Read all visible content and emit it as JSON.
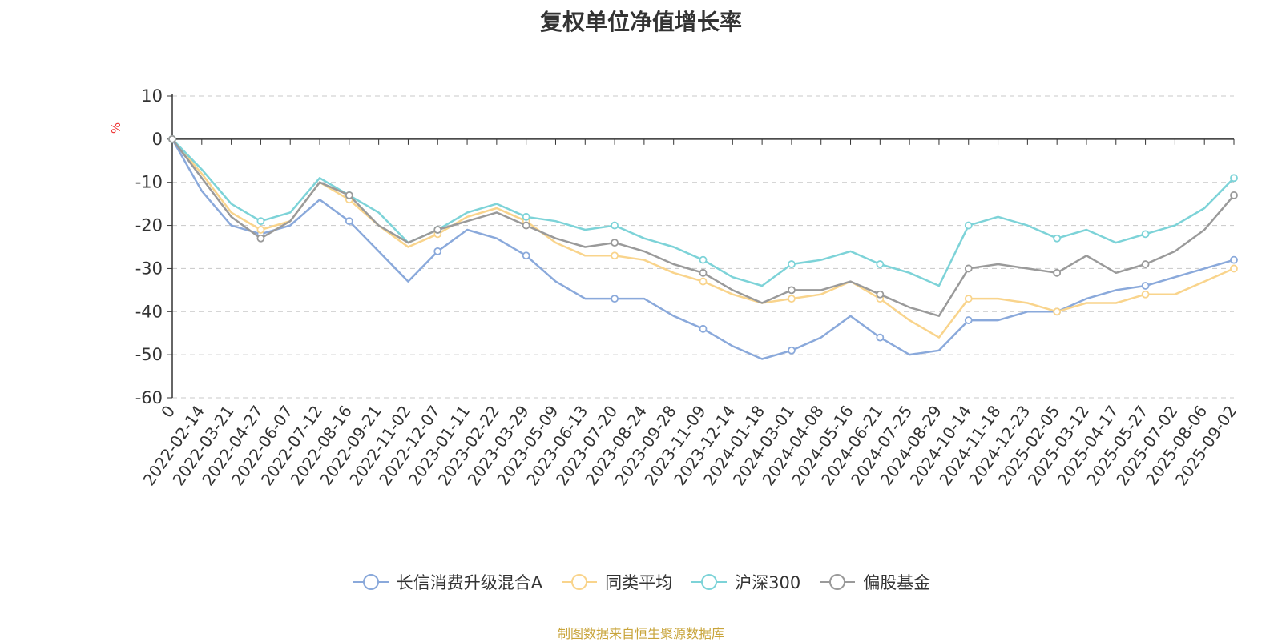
{
  "chart_data": {
    "type": "line",
    "title": "复权单位净值增长率",
    "ylabel": "%",
    "ylim": [
      -60,
      10
    ],
    "yticks": [
      "10",
      "0",
      "-10",
      "-20",
      "-30",
      "-40",
      "-50",
      "-60"
    ],
    "x_tick_labels": [
      "0",
      "2022-02-14",
      "2022-03-21",
      "2022-04-27",
      "2022-06-07",
      "2022-07-12",
      "2022-08-16",
      "2022-09-21",
      "2022-11-02",
      "2022-12-07",
      "2023-01-11",
      "2023-02-22",
      "2023-03-29",
      "2023-05-09",
      "2023-06-13",
      "2023-07-20",
      "2023-08-24",
      "2023-09-28",
      "2023-11-09",
      "2023-12-14",
      "2024-01-18",
      "2024-03-01",
      "2024-04-08",
      "2024-05-16",
      "2024-06-21",
      "2024-07-25",
      "2024-08-29",
      "2024-10-14",
      "2024-11-18",
      "2024-12-23",
      "2025-02-05",
      "2025-03-12",
      "2025-04-17",
      "2025-05-27",
      "2025-07-02",
      "2025-08-06",
      "2025-09-02"
    ],
    "grid": true,
    "legend_position": "bottom",
    "x": [
      "0",
      "2022-02-14",
      "2022-03-21",
      "2022-04-27",
      "2022-06-07",
      "2022-07-12",
      "2022-08-16",
      "2022-09-21",
      "2022-11-02",
      "2022-12-07",
      "2023-01-11",
      "2023-02-22",
      "2023-03-29",
      "2023-05-09",
      "2023-06-13",
      "2023-07-20",
      "2023-08-24",
      "2023-09-28",
      "2023-11-09",
      "2023-12-14",
      "2024-01-18",
      "2024-03-01",
      "2024-04-08",
      "2024-05-16",
      "2024-06-21",
      "2024-07-25",
      "2024-08-29",
      "2024-10-14",
      "2024-11-18",
      "2024-12-23",
      "2025-02-05",
      "2025-03-12",
      "2025-04-17",
      "2025-05-27",
      "2025-07-02",
      "2025-08-06",
      "2025-09-02"
    ],
    "series": [
      {
        "name": "长信消费升级混合A",
        "color": "#8aa9db",
        "values": [
          0,
          -12,
          -20,
          -22,
          -20,
          -14,
          -19,
          -26,
          -33,
          -26,
          -21,
          -23,
          -27,
          -33,
          -37,
          -37,
          -37,
          -41,
          -44,
          -48,
          -51,
          -49,
          -46,
          -41,
          -46,
          -50,
          -49,
          -42,
          -42,
          -40,
          -40,
          -37,
          -35,
          -34,
          -32,
          -30,
          -28
        ]
      },
      {
        "name": "同类平均",
        "color": "#f9d48c",
        "values": [
          0,
          -8,
          -17,
          -21,
          -19,
          -10,
          -14,
          -20,
          -25,
          -22,
          -18,
          -16,
          -19,
          -24,
          -27,
          -27,
          -28,
          -31,
          -33,
          -36,
          -38,
          -37,
          -36,
          -33,
          -37,
          -42,
          -46,
          -37,
          -37,
          -38,
          -40,
          -38,
          -38,
          -36,
          -36,
          -33,
          -30
        ]
      },
      {
        "name": "沪深300",
        "color": "#7dd3d8",
        "values": [
          0,
          -7,
          -15,
          -19,
          -17,
          -9,
          -13,
          -17,
          -24,
          -21,
          -17,
          -15,
          -18,
          -19,
          -21,
          -20,
          -23,
          -25,
          -28,
          -32,
          -34,
          -29,
          -28,
          -26,
          -29,
          -31,
          -34,
          -20,
          -18,
          -20,
          -23,
          -21,
          -24,
          -22,
          -20,
          -16,
          -9
        ]
      },
      {
        "name": "偏股基金",
        "color": "#9a9a9a",
        "values": [
          0,
          -9,
          -18,
          -23,
          -19,
          -10,
          -13,
          -20,
          -24,
          -21,
          -19,
          -17,
          -20,
          -23,
          -25,
          -24,
          -26,
          -29,
          -31,
          -35,
          -38,
          -35,
          -35,
          -33,
          -36,
          -39,
          -41,
          -30,
          -29,
          -30,
          -31,
          -27,
          -31,
          -29,
          -26,
          -21,
          -13
        ]
      }
    ],
    "source_note": "制图数据来自恒生聚源数据库"
  }
}
